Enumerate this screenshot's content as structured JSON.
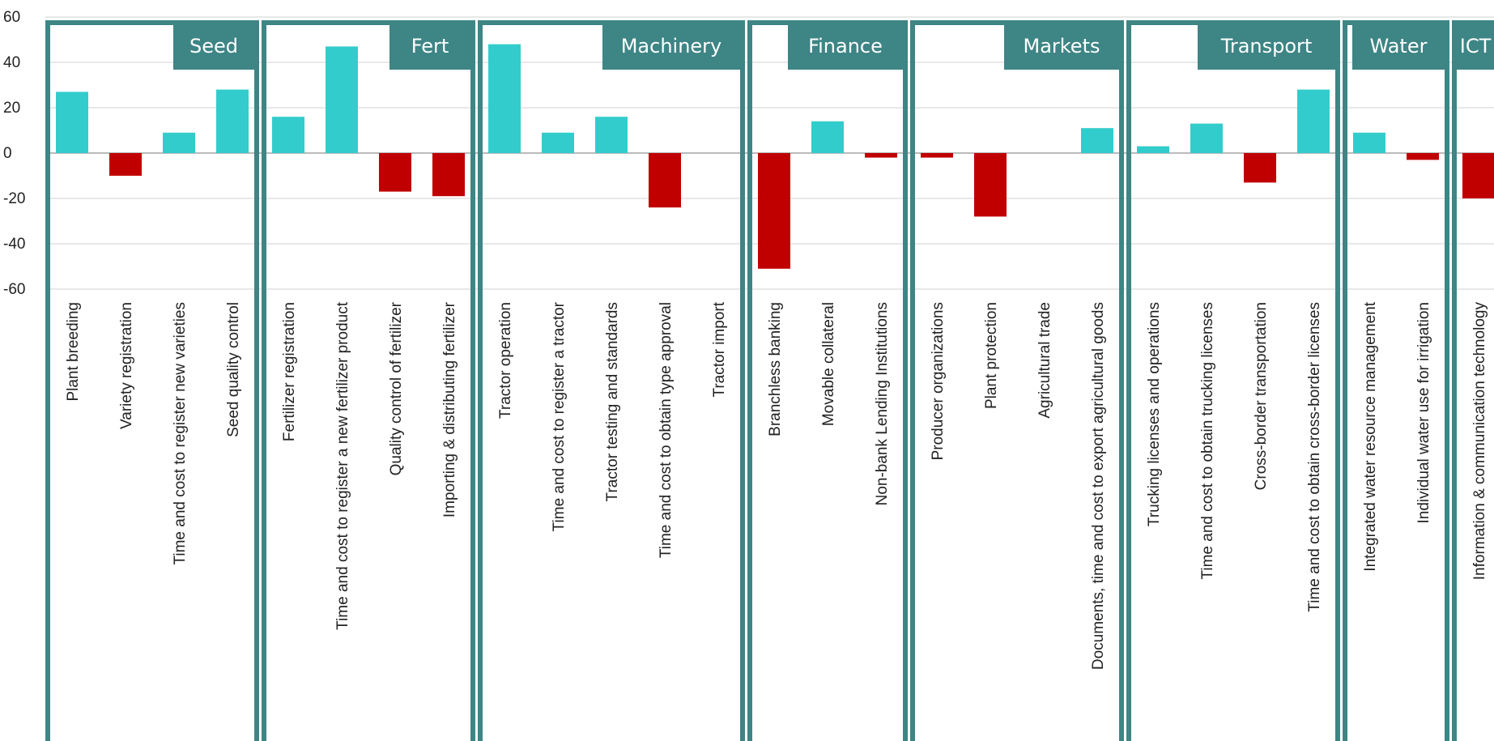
{
  "chart_data": {
    "type": "bar",
    "ylim": [
      -60,
      60
    ],
    "yticks": [
      60,
      40,
      20,
      0,
      -20,
      -40,
      -60
    ],
    "grid": true,
    "positive_color": "#33CCCC",
    "negative_color": "#C00000",
    "panel_color": "#3E8585",
    "groups": [
      {
        "name": "Seed",
        "categories": [
          "Plant breeding",
          "Variety registration",
          "Time and cost to register new varieties",
          "Seed quality control"
        ],
        "values": [
          27,
          -10,
          9,
          28
        ]
      },
      {
        "name": "Fert",
        "categories": [
          "Fertilizer registration",
          "Time and cost to register a new fertilizer product",
          "Quality control of fertilizer",
          "Importing & distributing fertilizer"
        ],
        "values": [
          16,
          47,
          -17,
          -19
        ]
      },
      {
        "name": "Machinery",
        "categories": [
          "Tractor operation",
          "Time and cost to register a tractor",
          "Tractor testing and standards",
          "Time and cost to obtain type approval",
          "Tractor import"
        ],
        "values": [
          48,
          9,
          16,
          -24,
          null
        ]
      },
      {
        "name": "Finance",
        "categories": [
          "Branchless banking",
          "Movable collateral",
          "Non-bank Lending Institutions"
        ],
        "values": [
          -51,
          14,
          -2
        ]
      },
      {
        "name": "Markets",
        "categories": [
          "Producer organizations",
          "Plant protection",
          "Agricultural trade",
          "Documents, time and cost to export agricultural goods"
        ],
        "values": [
          -2,
          -28,
          null,
          11
        ]
      },
      {
        "name": "Transport",
        "categories": [
          "Trucking licenses and operations",
          "Time and cost to obtain trucking licenses",
          "Cross-border transportation",
          "Time and cost to obtain cross-border licenses"
        ],
        "values": [
          3,
          13,
          -13,
          28
        ]
      },
      {
        "name": "Water",
        "categories": [
          "Integrated water resource management",
          "Individual water use for irrigation"
        ],
        "values": [
          9,
          -3
        ]
      },
      {
        "name": "ICT",
        "categories": [
          "Information & communication technology"
        ],
        "values": [
          -20
        ]
      }
    ]
  }
}
